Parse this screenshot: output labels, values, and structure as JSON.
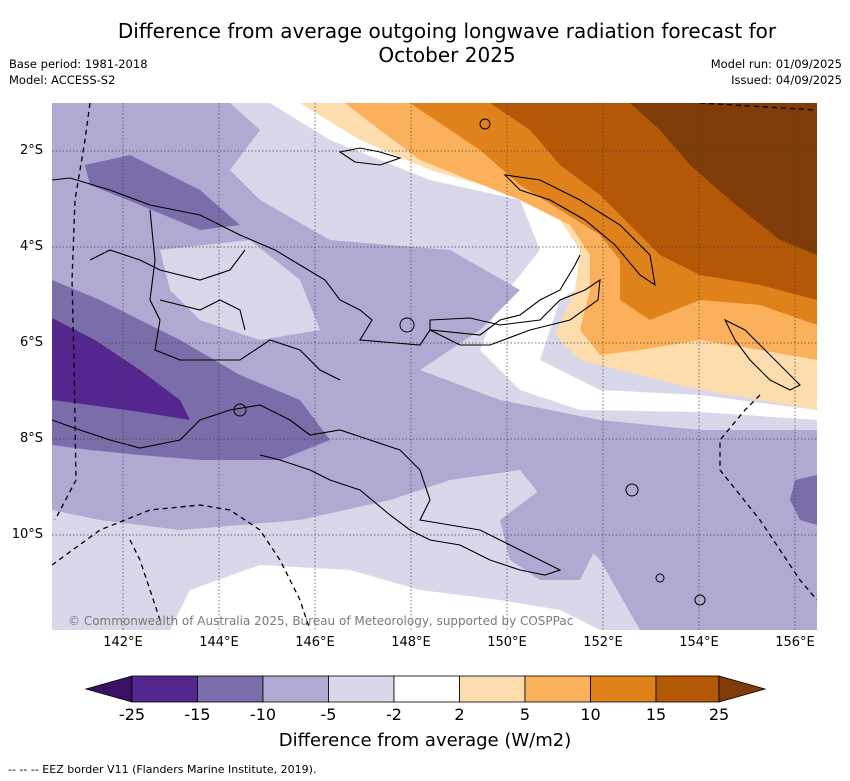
{
  "header": {
    "title_line1": "Difference from average outgoing longwave radiation forecast for",
    "title_line2": "October 2025",
    "base_period": "Base period: 1981-2018",
    "model": "Model: ACCESS-S2",
    "model_run": "Model run: 01/09/2025",
    "issued": "Issued: 04/09/2025"
  },
  "map": {
    "lat_labels": [
      "2°S",
      "4°S",
      "6°S",
      "8°S",
      "10°S"
    ],
    "lon_labels": [
      "142°E",
      "144°E",
      "146°E",
      "148°E",
      "150°E",
      "152°E",
      "154°E",
      "156°E"
    ],
    "credit": "© Commonwealth of Australia 2025, Bureau of Meteorology, supported by COSPPac"
  },
  "colorbar": {
    "ticks": [
      "-25",
      "-15",
      "-10",
      "-5",
      "-2",
      "2",
      "5",
      "10",
      "15",
      "25"
    ],
    "colors": [
      "#3a1062",
      "#54278f",
      "#7b6daa",
      "#b0aad3",
      "#d9d8ea",
      "#ffffff",
      "#fddcae",
      "#fbb15b",
      "#e0821c",
      "#b35806",
      "#7f3b08"
    ],
    "title": "Difference from average (W/m2)"
  },
  "footnote": "--  --  -- EEZ border V11 (Flanders Marine Institute, 2019)."
}
